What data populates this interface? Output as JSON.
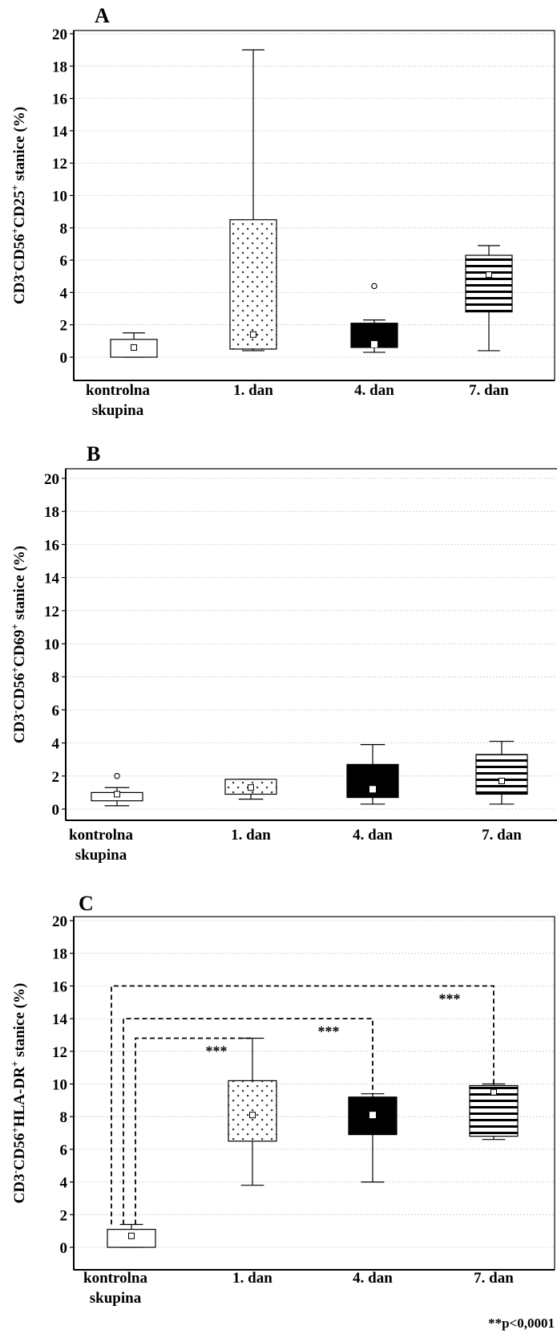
{
  "footnote": "**p<0,0001",
  "categories": [
    "kontrolna\nskupina",
    "1. dan",
    "4. dan",
    "7. dan"
  ],
  "chart_data": [
    {
      "type": "box",
      "panel_label": "A",
      "ylabel": "CD3-CD56+CD25+ stanice (%)",
      "ylabel_parts": [
        [
          "CD3",
          ""
        ],
        [
          "-",
          "sup"
        ],
        [
          "CD56",
          ""
        ],
        [
          "+",
          "sup"
        ],
        [
          "CD25",
          ""
        ],
        [
          "+",
          "sup"
        ],
        [
          " stanice (%)",
          ""
        ]
      ],
      "ylim": [
        0,
        20
      ],
      "yticks": [
        0,
        2,
        4,
        6,
        8,
        10,
        12,
        14,
        16,
        18,
        20
      ],
      "categories": [
        "kontrolna\nskupina",
        "1. dan",
        "4. dan",
        "7. dan"
      ],
      "boxes": [
        {
          "category": "kontrolna skupina",
          "whisker_low": 0,
          "q1": 0,
          "median": 0.6,
          "q3": 1.1,
          "whisker_high": 1.5,
          "mean": 0.6,
          "outliers": [],
          "pattern": "white"
        },
        {
          "category": "1. dan",
          "whisker_low": 0.4,
          "q1": 0.5,
          "median": 1.4,
          "q3": 8.5,
          "whisker_high": 19.0,
          "mean": 1.4,
          "outliers": [],
          "pattern": "dots"
        },
        {
          "category": "4. dan",
          "whisker_low": 0.3,
          "q1": 0.6,
          "median": 0.8,
          "q3": 2.1,
          "whisker_high": 2.3,
          "mean": 0.8,
          "outliers": [
            4.4
          ],
          "pattern": "black"
        },
        {
          "category": "7. dan",
          "whisker_low": 0.4,
          "q1": 2.8,
          "median": 5.1,
          "q3": 6.3,
          "whisker_high": 6.9,
          "mean": 5.1,
          "outliers": [],
          "pattern": "stripes"
        }
      ],
      "significance": []
    },
    {
      "type": "box",
      "panel_label": "B",
      "ylabel": "CD3-CD56+CD69+ stanice (%)",
      "ylabel_parts": [
        [
          "CD3",
          ""
        ],
        [
          "-",
          "sup"
        ],
        [
          "CD56",
          ""
        ],
        [
          "+",
          "sup"
        ],
        [
          "CD69",
          ""
        ],
        [
          "+",
          "sup"
        ],
        [
          " stanice (%)",
          ""
        ]
      ],
      "ylim": [
        0,
        20
      ],
      "yticks": [
        0,
        2,
        4,
        6,
        8,
        10,
        12,
        14,
        16,
        18,
        20
      ],
      "categories": [
        "kontrolna\nskupina",
        "1. dan",
        "4. dan",
        "7. dan"
      ],
      "boxes": [
        {
          "category": "kontrolna skupina",
          "whisker_low": 0.2,
          "q1": 0.5,
          "median": 0.9,
          "q3": 1.0,
          "whisker_high": 1.3,
          "mean": 0.9,
          "outliers": [
            2.0
          ],
          "pattern": "white"
        },
        {
          "category": "1. dan",
          "whisker_low": 0.6,
          "q1": 0.9,
          "median": 1.3,
          "q3": 1.8,
          "whisker_high": 1.8,
          "mean": 1.3,
          "outliers": [],
          "pattern": "dots"
        },
        {
          "category": "4. dan",
          "whisker_low": 0.3,
          "q1": 0.7,
          "median": 1.2,
          "q3": 2.7,
          "whisker_high": 3.9,
          "mean": 1.2,
          "outliers": [],
          "pattern": "black"
        },
        {
          "category": "7. dan",
          "whisker_low": 0.3,
          "q1": 0.9,
          "median": 1.7,
          "q3": 3.3,
          "whisker_high": 4.1,
          "mean": 1.7,
          "outliers": [],
          "pattern": "stripes"
        }
      ],
      "significance": []
    },
    {
      "type": "box",
      "panel_label": "C",
      "ylabel": "CD3-CD56+HLA-DR+ stanice (%)",
      "ylabel_parts": [
        [
          "CD3",
          ""
        ],
        [
          "-",
          "sup"
        ],
        [
          "CD56",
          ""
        ],
        [
          "+",
          "sup"
        ],
        [
          "HLA-DR",
          ""
        ],
        [
          "+",
          "sup"
        ],
        [
          " stanice (%)",
          ""
        ]
      ],
      "ylim": [
        0,
        20
      ],
      "yticks": [
        0,
        2,
        4,
        6,
        8,
        10,
        12,
        14,
        16,
        18,
        20
      ],
      "categories": [
        "kontrolna\nskupina",
        "1. dan",
        "4. dan",
        "7. dan"
      ],
      "boxes": [
        {
          "category": "kontrolna skupina",
          "whisker_low": 0,
          "q1": 0,
          "median": 0.7,
          "q3": 1.1,
          "whisker_high": 1.4,
          "mean": 0.7,
          "outliers": [],
          "pattern": "white"
        },
        {
          "category": "1. dan",
          "whisker_low": 3.8,
          "q1": 6.5,
          "median": 8.1,
          "q3": 10.2,
          "whisker_high": 12.8,
          "mean": 8.1,
          "outliers": [],
          "pattern": "dots"
        },
        {
          "category": "4. dan",
          "whisker_low": 4.0,
          "q1": 6.9,
          "median": 8.1,
          "q3": 9.2,
          "whisker_high": 9.4,
          "mean": 8.1,
          "outliers": [],
          "pattern": "black"
        },
        {
          "category": "7. dan",
          "whisker_low": 6.6,
          "q1": 6.8,
          "median": 9.5,
          "q3": 9.9,
          "whisker_high": 10.0,
          "mean": 9.5,
          "outliers": [],
          "pattern": "stripes"
        }
      ],
      "significance": [
        {
          "from": "kontrolna skupina",
          "to": "1. dan",
          "y": 12.8,
          "label": "***"
        },
        {
          "from": "kontrolna skupina",
          "to": "4. dan",
          "y": 14.0,
          "label": "***"
        },
        {
          "from": "kontrolna skupina",
          "to": "7. dan",
          "y": 16.0,
          "label": "***"
        }
      ]
    }
  ]
}
